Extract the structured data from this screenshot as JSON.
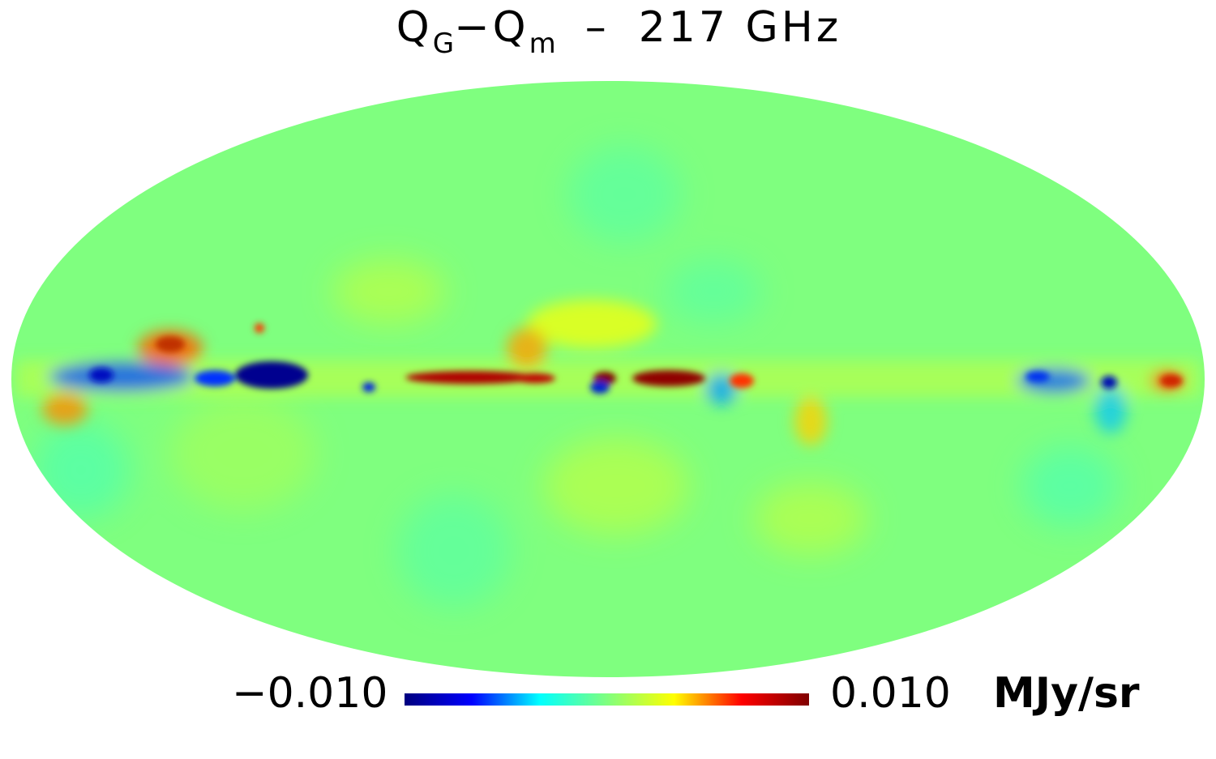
{
  "title": {
    "q1": "Q",
    "q1_sub": "G",
    "minus": "−",
    "q2": "Q",
    "q2_sub": "m",
    "dash": "–",
    "freq": "217 GHz"
  },
  "projection": "mollweide",
  "colormap": {
    "name": "jet",
    "stops": [
      "#00007f",
      "#0000ff",
      "#00ffff",
      "#7fff7f",
      "#ffff00",
      "#ff0000",
      "#7f0000"
    ]
  },
  "colorbar": {
    "min_label": "−0.010",
    "max_label": "0.010",
    "unit": "MJy/sr",
    "min": -0.01,
    "max": 0.01
  },
  "background_color": "#7fff7f"
}
